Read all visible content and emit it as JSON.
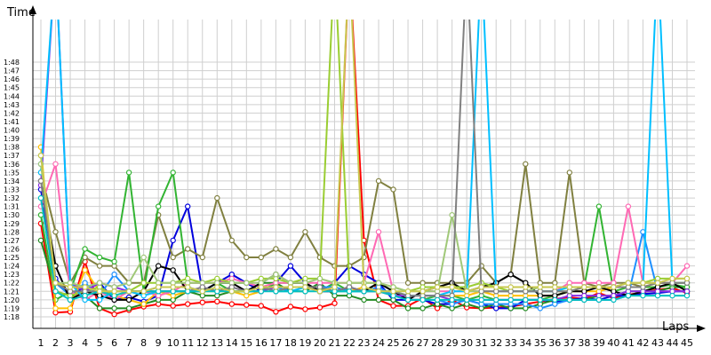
{
  "chart_data": {
    "type": "line",
    "title": "",
    "xlabel": "Laps",
    "ylabel": "Time",
    "x": [
      1,
      2,
      3,
      4,
      5,
      6,
      7,
      8,
      9,
      10,
      11,
      12,
      13,
      14,
      15,
      16,
      17,
      18,
      19,
      20,
      21,
      22,
      23,
      24,
      25,
      26,
      27,
      28,
      29,
      30,
      31,
      32,
      33,
      34,
      35,
      36,
      37,
      38,
      39,
      40,
      41,
      42,
      43,
      44,
      45
    ],
    "y_ticks": [
      "1:18",
      "1:19",
      "1:20",
      "1:21",
      "1:22",
      "1:23",
      "1:24",
      "1:25",
      "1:26",
      "1:27",
      "1:28",
      "1:29",
      "1:30",
      "1:31",
      "1:32",
      "1:33",
      "1:34",
      "1:35",
      "1:36",
      "1:37",
      "1:38",
      "1:39",
      "1:40",
      "1:41",
      "1:42",
      "1:43",
      "1:44",
      "1:45",
      "1:46",
      "1:47",
      "1:48"
    ],
    "ylim_seconds": [
      77,
      110
    ],
    "grid": true,
    "legend": "none",
    "series": [
      {
        "color": "#ff0000",
        "values": [
          89,
          78.5,
          78.6,
          84.5,
          79,
          78.3,
          78.8,
          79.2,
          79.5,
          79.3,
          79.5,
          79.7,
          79.8,
          79.5,
          79.4,
          79.3,
          78.6,
          79.2,
          78.9,
          79.1,
          79.6,
          120,
          87,
          80,
          79.3,
          79.3,
          80.2,
          79,
          80,
          79.1,
          79,
          79.1,
          79.2,
          79.5,
          79.8,
          80.1,
          80.3,
          80.1,
          80.8,
          80.2,
          80.6,
          80.9,
          81.2,
          81.4,
          80.8
        ]
      },
      {
        "color": "#0000dd",
        "values": [
          93,
          82.5,
          80.5,
          81.5,
          82,
          80,
          80.3,
          79.8,
          80.5,
          87,
          91,
          81,
          82,
          83,
          82,
          81,
          82,
          84,
          82,
          81,
          82,
          84,
          83,
          82,
          80,
          80,
          80,
          79.5,
          79.5,
          80,
          79.5,
          79,
          79,
          80,
          80,
          79.8,
          80,
          80.2,
          80,
          80.5,
          80.5,
          80.7,
          80.8,
          81,
          81
        ]
      },
      {
        "color": "#228b22",
        "values": [
          87,
          81,
          80.5,
          80.5,
          79,
          79,
          79,
          79.5,
          80,
          80,
          81,
          80.5,
          80.5,
          81,
          81,
          82,
          82,
          81,
          81,
          82,
          80.5,
          80.5,
          80,
          80,
          80,
          79,
          79,
          79.5,
          79,
          79.5,
          79,
          79.5,
          79,
          79,
          79.5,
          80,
          80,
          80,
          80.5,
          80.5,
          81,
          81,
          81,
          81.5,
          81.5
        ]
      },
      {
        "color": "#808040",
        "values": [
          95,
          88,
          82,
          85,
          84,
          84,
          82,
          82,
          90,
          85,
          86,
          85,
          92,
          87,
          85,
          85,
          86,
          85,
          88,
          85,
          84,
          84,
          85,
          94,
          93,
          82,
          82,
          82,
          82,
          82,
          84,
          82,
          83,
          96,
          82,
          82,
          95,
          82,
          81.5,
          82,
          82,
          81.5,
          82,
          82,
          82
        ]
      },
      {
        "color": "#32b432",
        "values": [
          90,
          80,
          81,
          86,
          85,
          84.5,
          95,
          81,
          91,
          95,
          82,
          82,
          82,
          81,
          81,
          81,
          82,
          82,
          82,
          81,
          82,
          81,
          81,
          82,
          81,
          80,
          80,
          80.5,
          80.5,
          80,
          80.5,
          80,
          80,
          80,
          80,
          80.5,
          81,
          81.5,
          91,
          81,
          81.5,
          81.5,
          81.5,
          81.8,
          81.5
        ]
      },
      {
        "color": "#1e90ff",
        "values": [
          96,
          82,
          80.5,
          82,
          80.5,
          83,
          81,
          81,
          81.5,
          81.5,
          81.5,
          81,
          82,
          82,
          82,
          81.5,
          81.5,
          81,
          81.5,
          81.5,
          81.5,
          81,
          81,
          81.5,
          80.5,
          80,
          80,
          80,
          79.5,
          80,
          79.5,
          79.5,
          79.5,
          79.5,
          79,
          79.5,
          80,
          80,
          80,
          80,
          80.5,
          88,
          81,
          81,
          81
        ]
      },
      {
        "color": "#ffc000",
        "values": [
          98,
          79,
          79,
          83.5,
          81,
          80.5,
          80,
          79.5,
          81,
          80.5,
          81,
          81,
          81,
          81,
          80.5,
          81,
          81.5,
          81.5,
          81.5,
          81,
          81,
          81,
          81.5,
          81,
          81,
          80.5,
          80.5,
          80.5,
          80.5,
          80.5,
          81,
          80.5,
          80.5,
          80.5,
          80.5,
          80.5,
          81,
          81,
          81,
          81.5,
          81.5,
          81.5,
          82,
          82,
          82
        ]
      },
      {
        "color": "#ff69b4",
        "values": [
          91,
          96,
          81,
          80,
          81,
          80,
          81,
          81,
          80.5,
          81,
          82,
          82,
          82,
          82.5,
          82,
          81.5,
          82,
          82,
          82,
          82,
          82,
          82,
          82,
          88,
          81,
          80,
          81,
          81,
          81,
          81,
          81,
          81,
          81,
          81,
          81,
          81,
          82,
          82,
          82,
          82,
          91,
          82,
          82,
          82,
          84
        ]
      },
      {
        "color": "#000000",
        "values": [
          94,
          84,
          80,
          81,
          80.5,
          80,
          80,
          81,
          84,
          83.5,
          81,
          81,
          82,
          82,
          81,
          82,
          83,
          82,
          82,
          81,
          81,
          81.5,
          81,
          82,
          81,
          80,
          81,
          81.5,
          82,
          81,
          81.5,
          82,
          83,
          82,
          80.5,
          80.5,
          81,
          81,
          81.5,
          81,
          80.5,
          81,
          81.5,
          82,
          81
        ]
      },
      {
        "color": "#9acd32",
        "values": [
          97,
          81,
          80.5,
          81,
          81.5,
          80.5,
          81,
          82,
          82,
          82,
          82.5,
          82,
          82.5,
          82,
          82,
          82.5,
          82.5,
          82,
          82.5,
          82.5,
          120,
          82,
          82,
          82,
          81.5,
          81,
          81.5,
          81.5,
          81.5,
          81.5,
          82,
          81.5,
          81,
          81,
          81,
          81,
          81,
          81.5,
          81.5,
          81.5,
          82,
          82,
          82.5,
          82.5,
          82.5
        ]
      },
      {
        "color": "#8a2be2",
        "values": [
          93.5,
          120,
          82,
          81,
          82,
          81.5,
          81,
          81,
          81,
          81,
          81,
          81.5,
          81,
          81.5,
          81,
          81,
          81.5,
          81.5,
          81.5,
          81,
          81,
          81.5,
          81,
          81,
          80.5,
          80.5,
          80.5,
          80.5,
          80,
          80,
          80,
          80,
          80,
          80,
          80,
          80,
          80.5,
          80.5,
          80.5,
          80.5,
          81,
          81,
          81,
          81,
          81
        ]
      },
      {
        "color": "#00bfff",
        "values": [
          95,
          120,
          82,
          80,
          80,
          81,
          81,
          80.5,
          81,
          81,
          81,
          81,
          81.5,
          81,
          81,
          81.5,
          81,
          81,
          81.5,
          81.5,
          81,
          81,
          81,
          81,
          81,
          80.5,
          80.5,
          80.5,
          81,
          81,
          120,
          81,
          81,
          81,
          81,
          81,
          81.5,
          81.5,
          81.5,
          81.5,
          81.5,
          81.5,
          120,
          82,
          82
        ]
      },
      {
        "color": "#a0c878",
        "values": [
          96,
          82,
          82,
          81.5,
          82,
          81.5,
          82,
          85,
          82,
          82,
          82,
          82,
          82,
          82,
          82,
          82,
          83,
          82,
          82,
          82.5,
          82,
          82,
          82,
          82,
          81.5,
          81,
          81,
          81,
          90,
          81,
          81,
          81,
          81,
          81,
          81.5,
          81.5,
          81.5,
          81.5,
          81.5,
          81.5,
          82,
          82,
          82,
          82,
          82
        ]
      },
      {
        "color": "#808080",
        "values": [
          94,
          82,
          81,
          81,
          81,
          81,
          81,
          81,
          81,
          81,
          81,
          81.5,
          81,
          81.5,
          81,
          81.5,
          81,
          81.5,
          81.5,
          81.5,
          81,
          81.5,
          81,
          81,
          81,
          80.5,
          80.5,
          80.5,
          80.5,
          120,
          81,
          81,
          81,
          81,
          81,
          81,
          81,
          81.5,
          81.5,
          81.5,
          81.5,
          81.5,
          82,
          82,
          82
        ]
      },
      {
        "color": "#00c0c0",
        "values": [
          92,
          81,
          80,
          80.5,
          81,
          80.5,
          81,
          81,
          81,
          81,
          81,
          81,
          81,
          81,
          81,
          81,
          81,
          81,
          81,
          81,
          81,
          81,
          81,
          81,
          80.5,
          80,
          80,
          80,
          80,
          80,
          80,
          80,
          80,
          80,
          80,
          80,
          80,
          80,
          80,
          80,
          80.5,
          80.5,
          80.5,
          80.5,
          80.5
        ]
      },
      {
        "color": "#c8c850",
        "values": [
          97,
          82,
          81.5,
          81.5,
          81,
          81,
          81,
          81,
          81.5,
          81.5,
          81.5,
          81,
          81.5,
          81,
          81,
          81.5,
          81.5,
          81.5,
          81.5,
          81,
          81.5,
          120,
          81.5,
          81,
          81,
          81,
          81,
          81.5,
          81.5,
          81,
          81.5,
          81.5,
          81.5,
          81.5,
          81.5,
          81.5,
          81.5,
          81.5,
          81.5,
          81.5,
          82,
          82,
          82,
          82.5,
          82.5
        ]
      }
    ]
  }
}
